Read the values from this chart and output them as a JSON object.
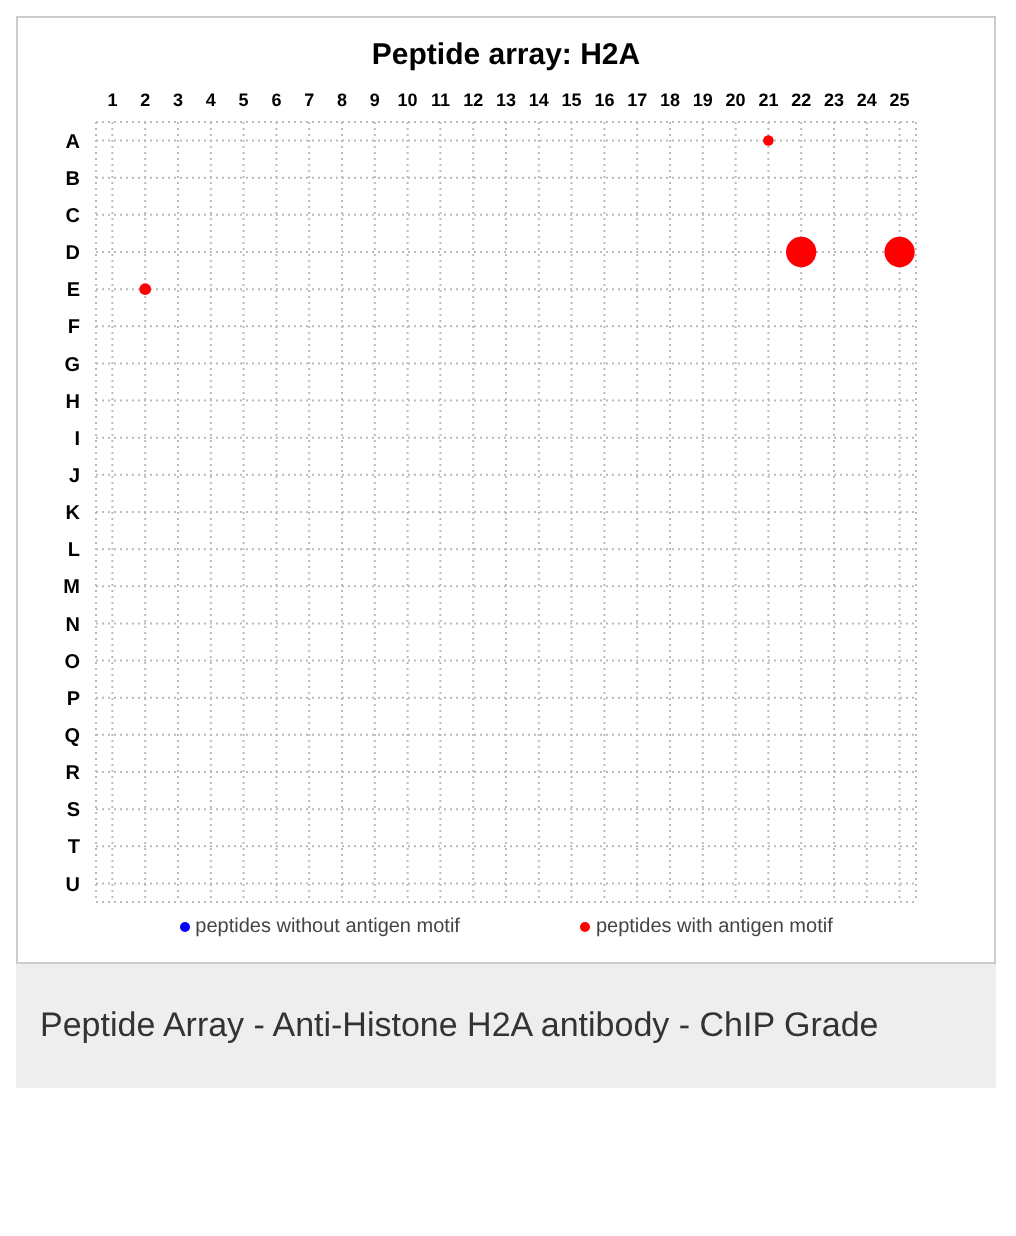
{
  "chart_data": {
    "type": "bubble",
    "title": "Peptide array:  H2A",
    "orientation": "horizontal",
    "categories": [
      "A",
      "B",
      "C",
      "D",
      "E",
      "F",
      "G",
      "H",
      "I",
      "J",
      "K",
      "L",
      "M",
      "N",
      "O",
      "P",
      "Q",
      "R",
      "S",
      "T",
      "U"
    ],
    "xlim": [
      0.5,
      25.5
    ],
    "xticks": [
      1,
      2,
      3,
      4,
      5,
      6,
      7,
      8,
      9,
      10,
      11,
      12,
      13,
      14,
      15,
      16,
      17,
      18,
      19,
      20,
      21,
      22,
      23,
      24,
      25
    ],
    "series": [
      {
        "name": "peptides without antigen motif",
        "color": "#0000ff",
        "values": [
          null,
          null,
          null,
          null,
          null,
          null,
          null,
          null,
          null,
          null,
          null,
          null,
          null,
          null,
          null,
          null,
          null,
          null,
          null,
          null,
          null
        ]
      },
      {
        "name": "peptides with antigen motif",
        "color": "#ff0000",
        "x": [
          "A",
          "E",
          "D",
          "D"
        ],
        "values": [
          21,
          2,
          22,
          25
        ],
        "sizes": [
          0.12,
          0.15,
          1,
          1
        ]
      }
    ],
    "grid": true,
    "legend": "bottom",
    "annotations": [
      "Peptide Array - Anti-Histone H2A antibody - ChIP Grade"
    ]
  }
}
